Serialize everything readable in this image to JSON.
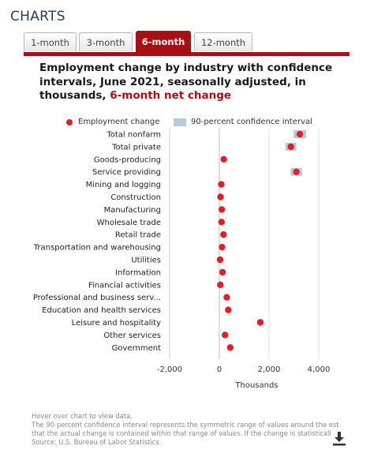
{
  "header": {
    "title": "CHARTS"
  },
  "tabs": [
    {
      "label": "1-month",
      "active": false
    },
    {
      "label": "3-month",
      "active": false
    },
    {
      "label": "6-month",
      "active": true
    },
    {
      "label": "12-month",
      "active": false
    }
  ],
  "chart_data": {
    "type": "scatter",
    "title": "Employment change by industry with confidence intervals, June 2021, seasonally adjusted, in thousands,",
    "title_highlight": "6-month net change",
    "legend": {
      "point": "Employment change",
      "interval": "90-percent confidence interval",
      "placement": "top"
    },
    "categories": [
      "Total nonfarm",
      "Total private",
      "Goods-producing",
      "Service providing",
      "Mining and logging",
      "Construction",
      "Manufacturing",
      "Wholesale trade",
      "Retail trade",
      "Transportation and warehousing",
      "Utilities",
      "Information",
      "Financial activities",
      "Professional and business serv...",
      "Education and health services",
      "Leisure and hospitality",
      "Other services",
      "Government"
    ],
    "values": [
      3240,
      2880,
      180,
      3100,
      80,
      50,
      100,
      90,
      170,
      110,
      30,
      130,
      40,
      300,
      360,
      1650,
      230,
      440
    ],
    "ci": [
      [
        2990,
        3490
      ],
      [
        2660,
        3100
      ],
      null,
      [
        2870,
        3330
      ],
      null,
      null,
      null,
      null,
      null,
      null,
      null,
      null,
      null,
      null,
      null,
      null,
      null,
      null
    ],
    "xlabel": "Thousands",
    "xlim": [
      -2000,
      4000
    ],
    "xticks": [
      -2000,
      0,
      2000,
      4000
    ],
    "xtick_labels": [
      "-2,000",
      "0",
      "2,000",
      "4,000"
    ],
    "colors": {
      "point": "#e21f26",
      "interval": "#b8c9de",
      "accent": "#a80f14"
    }
  },
  "footer": {
    "line1": "Hover over chart to view data.",
    "line2": "The 90-percent confidence interval represents the symmetric range of values around the est",
    "line3": "that the actual change is contained within that range of values. If the change is statisticall",
    "line4": "Source: U.S. Bureau of Labor Statistics."
  },
  "icons": {
    "download": "download-icon"
  }
}
